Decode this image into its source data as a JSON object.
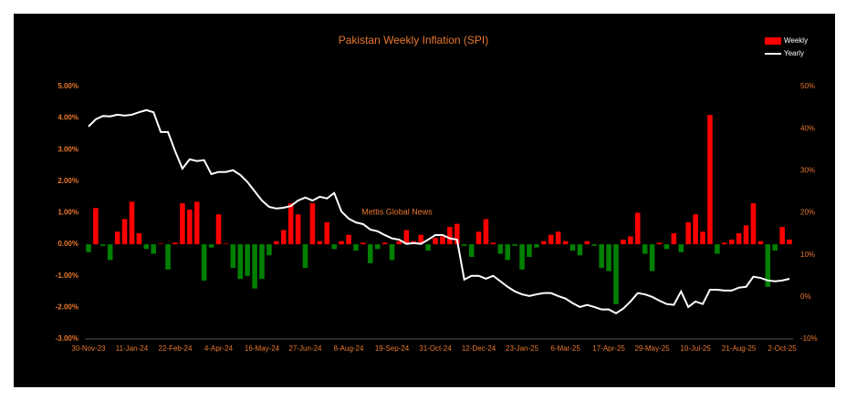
{
  "chart_data": {
    "type": "combo",
    "title": "Pakistan Weekly Inflation (SPI)",
    "annotation": "Mettis Global News",
    "categories": [
      "30-Nov-23",
      null,
      null,
      null,
      null,
      null,
      "11-Jan-24",
      null,
      null,
      null,
      null,
      null,
      "22-Feb-24",
      null,
      null,
      null,
      null,
      null,
      "4-Apr-24",
      null,
      null,
      null,
      null,
      null,
      "16-May-24",
      null,
      null,
      null,
      null,
      null,
      "27-Jun-24",
      null,
      null,
      null,
      null,
      null,
      "8-Aug-24",
      null,
      null,
      null,
      null,
      null,
      "19-Sep-24",
      null,
      null,
      null,
      null,
      null,
      "31-Oct-24",
      null,
      null,
      null,
      null,
      null,
      "12-Dec-24",
      null,
      null,
      null,
      null,
      null,
      "23-Jan-25",
      null,
      null,
      null,
      null,
      null,
      "6-Mar-25",
      null,
      null,
      null,
      null,
      null,
      "17-Apr-25",
      null,
      null,
      null,
      null,
      null,
      "29-May-25",
      null,
      null,
      null,
      null,
      null,
      "10-Jul-25",
      null,
      null,
      null,
      null,
      null,
      "21-Aug-25",
      null,
      null,
      null,
      null,
      null,
      "2-Oct-25",
      null
    ],
    "series": [
      {
        "name": "Weekly",
        "type": "bar",
        "color": "#ff0000",
        "negative_color": "#008000",
        "values": [
          -0.25,
          1.15,
          -0.05,
          -0.5,
          0.4,
          0.8,
          1.35,
          0.35,
          -0.15,
          -0.3,
          0.02,
          -0.8,
          0.05,
          1.3,
          1.1,
          1.35,
          -1.15,
          -0.1,
          0.95,
          0.02,
          -0.75,
          -1.1,
          -1.0,
          -1.4,
          -1.1,
          -0.35,
          0.1,
          0.45,
          1.3,
          0.95,
          -0.75,
          1.3,
          0.1,
          0.7,
          -0.15,
          0.1,
          0.3,
          -0.2,
          0.05,
          -0.6,
          -0.15,
          0.05,
          -0.5,
          0.1,
          0.45,
          0.1,
          0.3,
          -0.2,
          0.2,
          0.25,
          0.55,
          0.65,
          -0.05,
          -0.4,
          0.4,
          0.8,
          0.05,
          -0.3,
          -0.5,
          -0.05,
          -0.8,
          -0.4,
          -0.1,
          0.1,
          0.3,
          0.4,
          0.1,
          -0.2,
          -0.35,
          0.1,
          -0.05,
          -0.75,
          -0.85,
          -1.9,
          0.15,
          0.25,
          1.0,
          -0.3,
          -0.85,
          0.05,
          -0.15,
          0.35,
          -0.25,
          0.7,
          0.95,
          0.4,
          4.1,
          -0.3,
          0.05,
          0.15,
          0.35,
          0.6,
          1.3,
          0.1,
          -1.35,
          -0.2,
          0.55,
          0.15
        ]
      },
      {
        "name": "Yearly",
        "type": "line",
        "axis": "y2",
        "color": "#ffffff",
        "values": [
          40.5,
          42.2,
          43,
          42.9,
          43.3,
          43.1,
          43.3,
          43.9,
          44.4,
          43.9,
          39.2,
          39.2,
          34.6,
          30.5,
          32.7,
          32.3,
          32.5,
          29.2,
          29.7,
          29.7,
          30.1,
          29,
          27.3,
          25.1,
          22.9,
          21.4,
          21,
          21.2,
          21.6,
          22.9,
          23.6,
          22.9,
          23.8,
          23.4,
          24.7,
          20.3,
          18.6,
          17.7,
          17.3,
          16,
          15.6,
          14.7,
          13.9,
          13.6,
          12.6,
          12.8,
          12.6,
          13.6,
          14.7,
          14.7,
          13.9,
          13.6,
          4.1,
          5,
          5,
          4.3,
          5,
          3.7,
          2.4,
          1.3,
          0.6,
          0.2,
          0.6,
          0.9,
          0.9,
          0.2,
          -0.4,
          -1.5,
          -2.4,
          -1.9,
          -2.4,
          -3,
          -3,
          -3.9,
          -2.8,
          -1.1,
          0.9,
          0.6,
          0,
          -0.9,
          -1.7,
          -1.9,
          1.3,
          -2.4,
          -1.1,
          -1.7,
          1.7,
          1.7,
          1.5,
          1.5,
          2.2,
          2.4,
          4.8,
          4.5,
          3.9,
          3.7,
          3.9,
          4.3
        ]
      }
    ],
    "ylim": [
      -3,
      5
    ],
    "yticks": [
      {
        "value": -3,
        "label": "-3.00%"
      },
      {
        "value": -2,
        "label": "-2.00%"
      },
      {
        "value": -1,
        "label": "-1.00%"
      },
      {
        "value": 0,
        "label": "0.00%"
      },
      {
        "value": 1,
        "label": "1.00%"
      },
      {
        "value": 2,
        "label": "2.00%"
      },
      {
        "value": 3,
        "label": "3.00%"
      },
      {
        "value": 4,
        "label": "4.00%"
      },
      {
        "value": 5,
        "label": "5.00%"
      }
    ],
    "y2lim": [
      -10,
      50
    ],
    "y2ticks": [
      {
        "value": -10,
        "label": "-10%"
      },
      {
        "value": 0,
        "label": "0%"
      },
      {
        "value": 10,
        "label": "10%"
      },
      {
        "value": 20,
        "label": "20%"
      },
      {
        "value": 30,
        "label": "30%"
      },
      {
        "value": 40,
        "label": "40%"
      },
      {
        "value": 50,
        "label": "50%"
      }
    ],
    "grid": false,
    "legend": "top-right"
  }
}
